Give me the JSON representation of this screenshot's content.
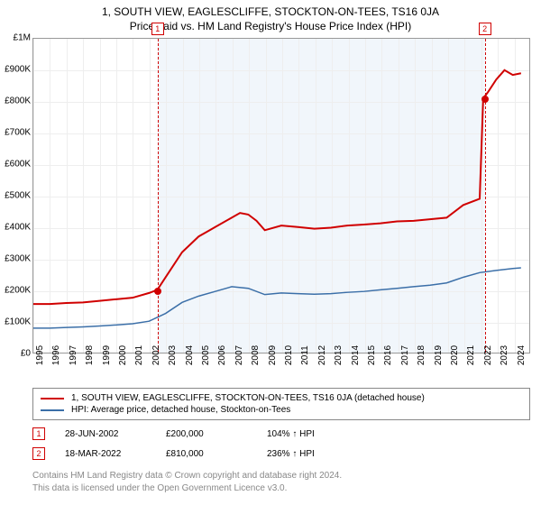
{
  "title_line1": "1, SOUTH VIEW, EAGLESCLIFFE, STOCKTON-ON-TEES, TS16 0JA",
  "title_line2": "Price paid vs. HM Land Registry's House Price Index (HPI)",
  "chart": {
    "type": "line",
    "background_color": "#ffffff",
    "grid_color": "#eeeeee",
    "axis_color": "#999999",
    "x": {
      "min": 1995,
      "max": 2025,
      "ticks": [
        1995,
        1996,
        1997,
        1998,
        1999,
        2000,
        2001,
        2002,
        2003,
        2004,
        2005,
        2006,
        2007,
        2008,
        2009,
        2010,
        2011,
        2012,
        2013,
        2014,
        2015,
        2016,
        2017,
        2018,
        2019,
        2020,
        2021,
        2022,
        2023,
        2024
      ]
    },
    "y": {
      "min": 0,
      "max": 1000000,
      "tick_step": 100000,
      "tick_labels": [
        "£0",
        "£100K",
        "£200K",
        "£300K",
        "£400K",
        "£500K",
        "£600K",
        "£700K",
        "£800K",
        "£900K",
        "£1M"
      ]
    },
    "series": [
      {
        "name": "subject_property",
        "label": "1, SOUTH VIEW, EAGLESCLIFFE, STOCKTON-ON-TEES, TS16 0JA (detached house)",
        "color": "#d00000",
        "line_width": 2,
        "points": [
          [
            1995,
            155000
          ],
          [
            1996,
            155000
          ],
          [
            1997,
            158000
          ],
          [
            1998,
            160000
          ],
          [
            1999,
            165000
          ],
          [
            2000,
            170000
          ],
          [
            2001,
            175000
          ],
          [
            2002,
            190000
          ],
          [
            2002.5,
            200000
          ],
          [
            2003,
            240000
          ],
          [
            2004,
            320000
          ],
          [
            2005,
            370000
          ],
          [
            2006,
            400000
          ],
          [
            2007,
            430000
          ],
          [
            2007.5,
            445000
          ],
          [
            2008,
            440000
          ],
          [
            2008.5,
            420000
          ],
          [
            2009,
            390000
          ],
          [
            2010,
            405000
          ],
          [
            2011,
            400000
          ],
          [
            2012,
            395000
          ],
          [
            2013,
            398000
          ],
          [
            2014,
            405000
          ],
          [
            2015,
            408000
          ],
          [
            2016,
            412000
          ],
          [
            2017,
            418000
          ],
          [
            2018,
            420000
          ],
          [
            2019,
            425000
          ],
          [
            2020,
            430000
          ],
          [
            2021,
            470000
          ],
          [
            2022,
            490000
          ],
          [
            2022.21,
            810000
          ],
          [
            2022.5,
            830000
          ],
          [
            2023,
            870000
          ],
          [
            2023.5,
            900000
          ],
          [
            2024,
            885000
          ],
          [
            2024.5,
            890000
          ]
        ]
      },
      {
        "name": "hpi",
        "label": "HPI: Average price, detached house, Stockton-on-Tees",
        "color": "#3b6fa8",
        "line_width": 1.5,
        "points": [
          [
            1995,
            78000
          ],
          [
            1996,
            78000
          ],
          [
            1997,
            80000
          ],
          [
            1998,
            82000
          ],
          [
            1999,
            85000
          ],
          [
            2000,
            88000
          ],
          [
            2001,
            92000
          ],
          [
            2002,
            100000
          ],
          [
            2003,
            125000
          ],
          [
            2004,
            160000
          ],
          [
            2005,
            180000
          ],
          [
            2006,
            195000
          ],
          [
            2007,
            210000
          ],
          [
            2008,
            205000
          ],
          [
            2009,
            185000
          ],
          [
            2010,
            190000
          ],
          [
            2011,
            188000
          ],
          [
            2012,
            186000
          ],
          [
            2013,
            188000
          ],
          [
            2014,
            192000
          ],
          [
            2015,
            195000
          ],
          [
            2016,
            200000
          ],
          [
            2017,
            205000
          ],
          [
            2018,
            210000
          ],
          [
            2019,
            215000
          ],
          [
            2020,
            222000
          ],
          [
            2021,
            240000
          ],
          [
            2022,
            255000
          ],
          [
            2023,
            262000
          ],
          [
            2024,
            268000
          ],
          [
            2024.5,
            270000
          ]
        ]
      }
    ],
    "shaded_region": {
      "x_from": 2002.49,
      "x_to": 2022.21,
      "fill": "rgba(200,220,240,0.25)"
    },
    "sale_markers": [
      {
        "n": 1,
        "x": 2002.49,
        "y": 200000,
        "color": "#d00000"
      },
      {
        "n": 2,
        "x": 2022.21,
        "y": 810000,
        "color": "#d00000"
      }
    ]
  },
  "legend": {
    "items": [
      {
        "color": "#d00000",
        "label": "1, SOUTH VIEW, EAGLESCLIFFE, STOCKTON-ON-TEES, TS16 0JA (detached house)"
      },
      {
        "color": "#3b6fa8",
        "label": "HPI: Average price, detached house, Stockton-on-Tees"
      }
    ]
  },
  "sales": [
    {
      "n": "1",
      "color": "#d00000",
      "date": "28-JUN-2002",
      "price": "£200,000",
      "pct": "104% ↑ HPI"
    },
    {
      "n": "2",
      "color": "#d00000",
      "date": "18-MAR-2022",
      "price": "£810,000",
      "pct": "236% ↑ HPI"
    }
  ],
  "footer_line1": "Contains HM Land Registry data © Crown copyright and database right 2024.",
  "footer_line2": "This data is licensed under the Open Government Licence v3.0."
}
